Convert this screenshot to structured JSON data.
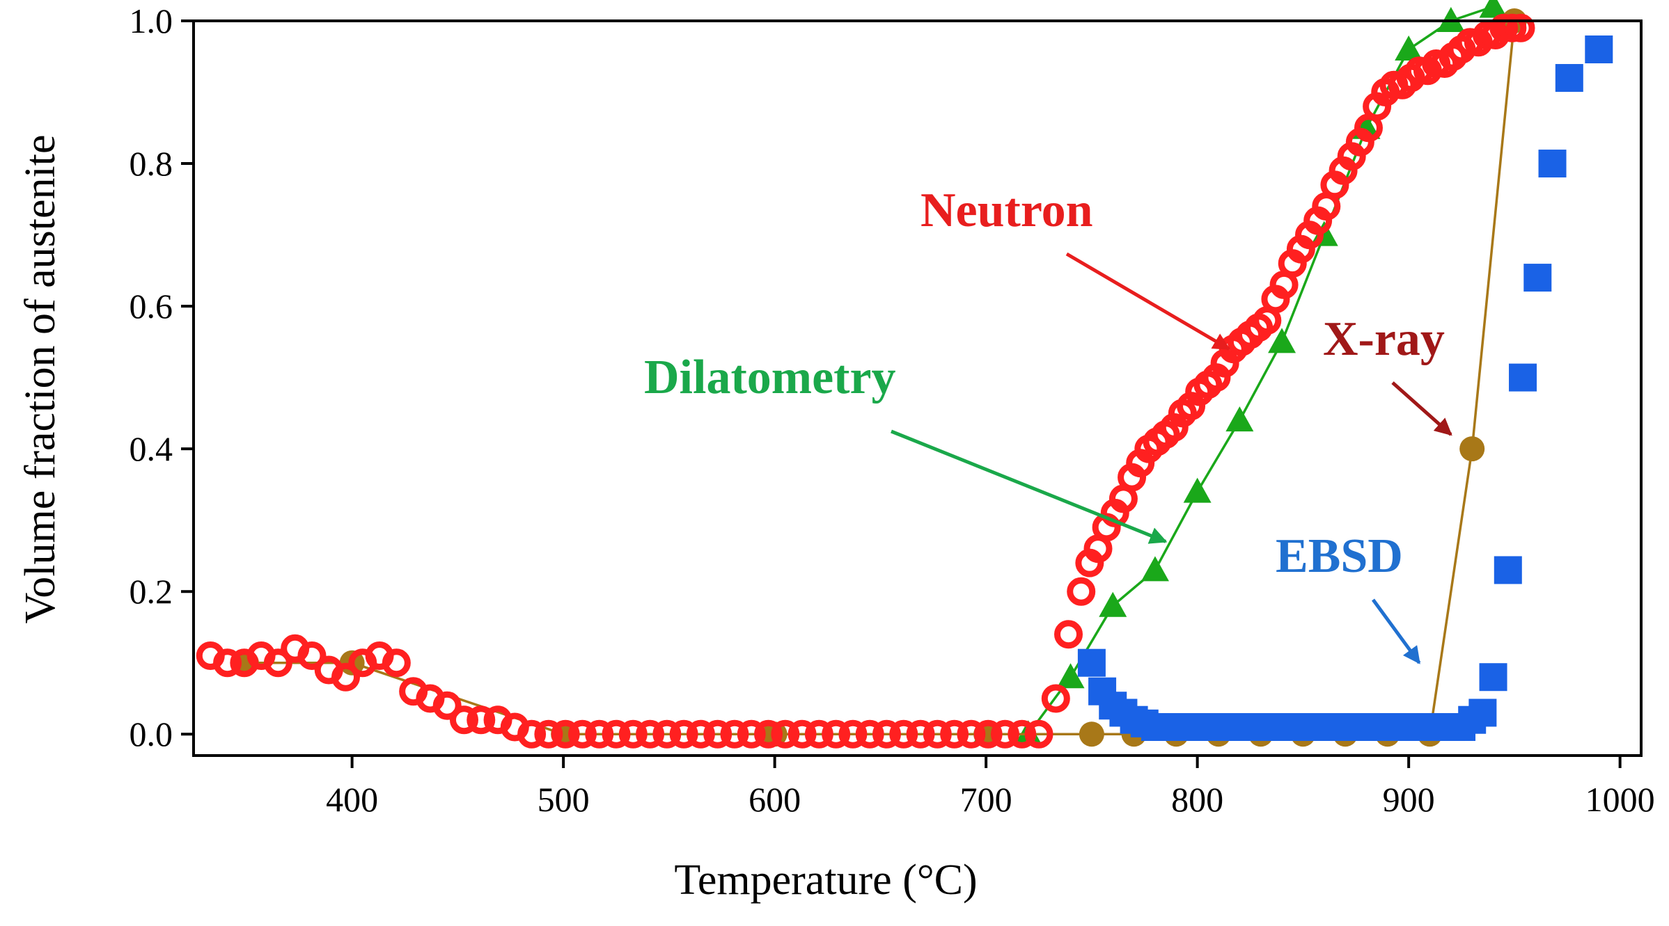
{
  "chart_data": {
    "type": "scatter",
    "title": "",
    "xlabel": "Temperature (°C)",
    "ylabel": "Volume fraction of austenite",
    "xlim": [
      325,
      1010
    ],
    "ylim": [
      -0.03,
      1.0
    ],
    "xticks": [
      400,
      500,
      600,
      700,
      800,
      900,
      1000
    ],
    "yticks": [
      0.0,
      0.2,
      0.4,
      0.6,
      0.8,
      1.0
    ],
    "xtick_labels": [
      "400",
      "500",
      "600",
      "700",
      "800",
      "900",
      "1000"
    ],
    "ytick_labels": [
      "0.0",
      "0.2",
      "0.4",
      "0.6",
      "0.8",
      "1.0"
    ],
    "grid": false,
    "series": [
      {
        "name": "Neutron",
        "marker": "open-circle",
        "color": "#ff2020",
        "line": false,
        "x": [
          333,
          341,
          349,
          357,
          365,
          373,
          381,
          389,
          397,
          405,
          413,
          421,
          429,
          437,
          445,
          453,
          461,
          469,
          477,
          485,
          493,
          501,
          509,
          517,
          525,
          533,
          541,
          549,
          557,
          565,
          573,
          581,
          589,
          597,
          605,
          613,
          621,
          629,
          637,
          645,
          653,
          661,
          669,
          677,
          685,
          693,
          701,
          709,
          717,
          725,
          733,
          739,
          745,
          749,
          753,
          757,
          761,
          765,
          769,
          773,
          777,
          781,
          785,
          789,
          793,
          797,
          801,
          805,
          809,
          813,
          817,
          821,
          825,
          829,
          833,
          837,
          841,
          845,
          849,
          853,
          857,
          861,
          865,
          869,
          873,
          877,
          881,
          885,
          889,
          893,
          897,
          901,
          905,
          909,
          913,
          917,
          921,
          925,
          929,
          933,
          937,
          941,
          945,
          949,
          953
        ],
        "y": [
          0.11,
          0.1,
          0.1,
          0.11,
          0.1,
          0.12,
          0.11,
          0.09,
          0.08,
          0.1,
          0.11,
          0.1,
          0.06,
          0.05,
          0.04,
          0.02,
          0.02,
          0.02,
          0.01,
          0.0,
          0.0,
          0.0,
          0.0,
          0.0,
          0.0,
          0.0,
          0.0,
          0.0,
          0.0,
          0.0,
          0.0,
          0.0,
          0.0,
          0.0,
          0.0,
          0.0,
          0.0,
          0.0,
          0.0,
          0.0,
          0.0,
          0.0,
          0.0,
          0.0,
          0.0,
          0.0,
          0.0,
          0.0,
          0.0,
          0.0,
          0.05,
          0.14,
          0.2,
          0.24,
          0.26,
          0.29,
          0.31,
          0.33,
          0.36,
          0.38,
          0.4,
          0.41,
          0.42,
          0.43,
          0.45,
          0.46,
          0.48,
          0.49,
          0.5,
          0.52,
          0.54,
          0.55,
          0.56,
          0.57,
          0.58,
          0.61,
          0.63,
          0.66,
          0.68,
          0.7,
          0.72,
          0.74,
          0.77,
          0.79,
          0.81,
          0.83,
          0.85,
          0.88,
          0.9,
          0.91,
          0.91,
          0.92,
          0.93,
          0.93,
          0.94,
          0.94,
          0.95,
          0.96,
          0.97,
          0.97,
          0.98,
          0.98,
          0.99,
          0.99,
          0.99
        ]
      },
      {
        "name": "Dilatometry",
        "marker": "triangle",
        "color": "#1aa81a",
        "line": true,
        "x": [
          700,
          720,
          740,
          760,
          780,
          800,
          820,
          840,
          860,
          880,
          900,
          920,
          940
        ],
        "y": [
          0.0,
          0.0,
          0.08,
          0.18,
          0.23,
          0.34,
          0.44,
          0.55,
          0.7,
          0.85,
          0.96,
          1.0,
          1.02
        ]
      },
      {
        "name": "X-ray",
        "marker": "filled-circle",
        "color": "#a87818",
        "line": true,
        "x": [
          350,
          400,
          500,
          600,
          700,
          750,
          770,
          790,
          810,
          830,
          850,
          870,
          890,
          910,
          930,
          950
        ],
        "y": [
          0.1,
          0.1,
          0.0,
          0.0,
          0.0,
          0.0,
          0.0,
          0.0,
          0.0,
          0.0,
          0.0,
          0.0,
          0.0,
          0.0,
          0.4,
          1.0
        ]
      },
      {
        "name": "EBSD",
        "marker": "filled-square",
        "color": "#1a62e6",
        "line": false,
        "x": [
          750,
          755,
          760,
          765,
          770,
          775,
          780,
          785,
          790,
          800,
          810,
          820,
          830,
          840,
          850,
          860,
          870,
          880,
          890,
          900,
          905,
          910,
          915,
          920,
          925,
          930,
          935,
          940,
          947,
          954,
          961,
          968,
          976,
          990
        ],
        "y": [
          0.1,
          0.06,
          0.04,
          0.03,
          0.02,
          0.015,
          0.01,
          0.01,
          0.01,
          0.01,
          0.01,
          0.01,
          0.01,
          0.01,
          0.01,
          0.01,
          0.01,
          0.01,
          0.01,
          0.01,
          0.01,
          0.01,
          0.01,
          0.01,
          0.01,
          0.02,
          0.03,
          0.08,
          0.23,
          0.5,
          0.64,
          0.8,
          0.92,
          0.96
        ]
      }
    ],
    "annotations": [
      {
        "text": "Neutron",
        "color": "#e81e1e",
        "data_x": 815,
        "data_y": 0.54
      },
      {
        "text": "Dilatometry",
        "color": "#1aa84a",
        "data_x": 785,
        "data_y": 0.27
      },
      {
        "text": "X-ray",
        "color": "#a01818",
        "data_x": 920,
        "data_y": 0.42
      },
      {
        "text": "EBSD",
        "color": "#2070d0",
        "data_x": 905,
        "data_y": 0.1
      }
    ]
  }
}
